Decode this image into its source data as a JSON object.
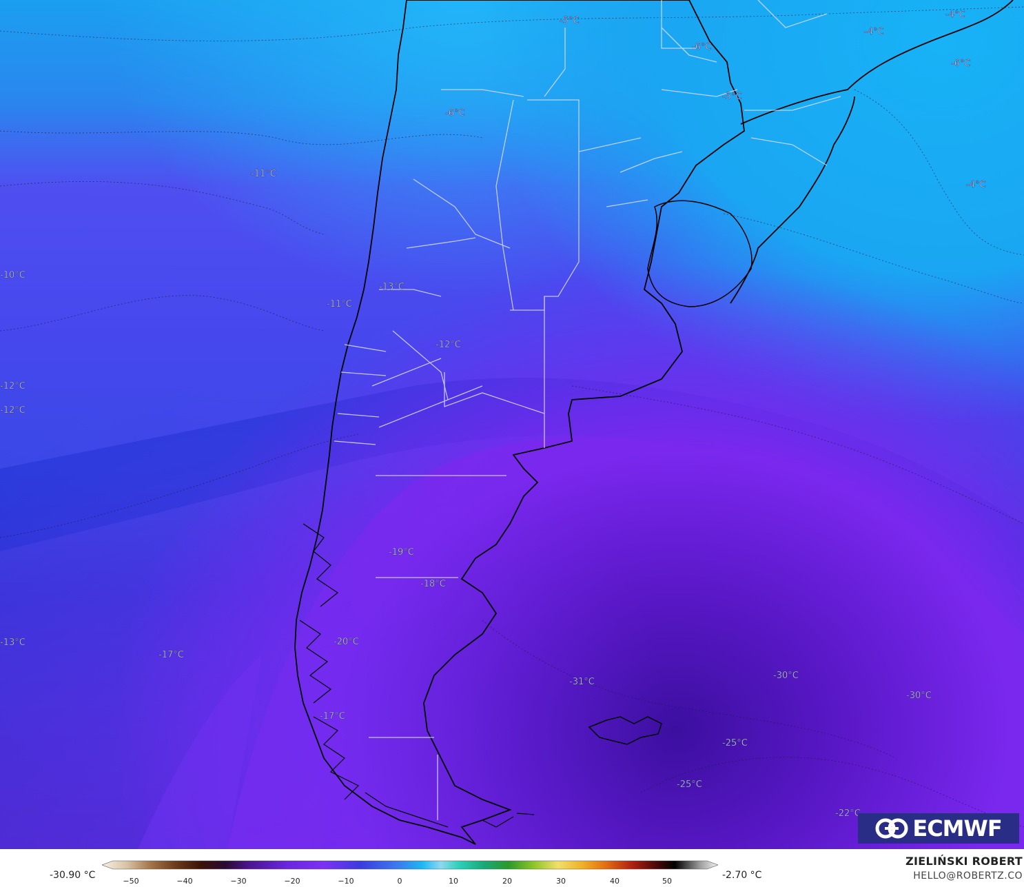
{
  "map": {
    "labels": [
      {
        "text": "-5°C"
      },
      {
        "text": "-4°C"
      },
      {
        "text": "-4°C"
      },
      {
        "text": "-6°C"
      },
      {
        "text": "-6°C"
      },
      {
        "text": "-5°C"
      },
      {
        "text": "-6°C"
      },
      {
        "text": "-4°C"
      },
      {
        "text": "-11°C"
      },
      {
        "text": "-10°C"
      },
      {
        "text": "-13°C"
      },
      {
        "text": "-11°C"
      },
      {
        "text": "-12°C"
      },
      {
        "text": "-12°C"
      },
      {
        "text": "-12°C"
      },
      {
        "text": "-19°C"
      },
      {
        "text": "-18°C"
      },
      {
        "text": "-13°C"
      },
      {
        "text": "-17°C"
      },
      {
        "text": "-20°C"
      },
      {
        "text": "-31°C"
      },
      {
        "text": "-30°C"
      },
      {
        "text": "-30°C"
      },
      {
        "text": "-17°C"
      },
      {
        "text": "-25°C"
      },
      {
        "text": "-25°C"
      },
      {
        "text": "-22°C"
      }
    ],
    "colors": {
      "warm_sky": "#1aa9f0",
      "mid_blue": "#3a5cf0",
      "deep_blue": "#2034d6",
      "violet": "#7a2af0",
      "dark_violet": "#4a16b0"
    }
  },
  "logo": {
    "text": "ECMWF"
  },
  "footer": {
    "min_value": "-30.90 °C",
    "max_value": "-2.70 °C",
    "ticks": [
      "−50",
      "−40",
      "−30",
      "−20",
      "−10",
      "0",
      "10",
      "20",
      "30",
      "40",
      "50"
    ],
    "author": "ZIELIŃSKI ROBERT",
    "email": "HELLO@ROBERTZ.CO"
  }
}
